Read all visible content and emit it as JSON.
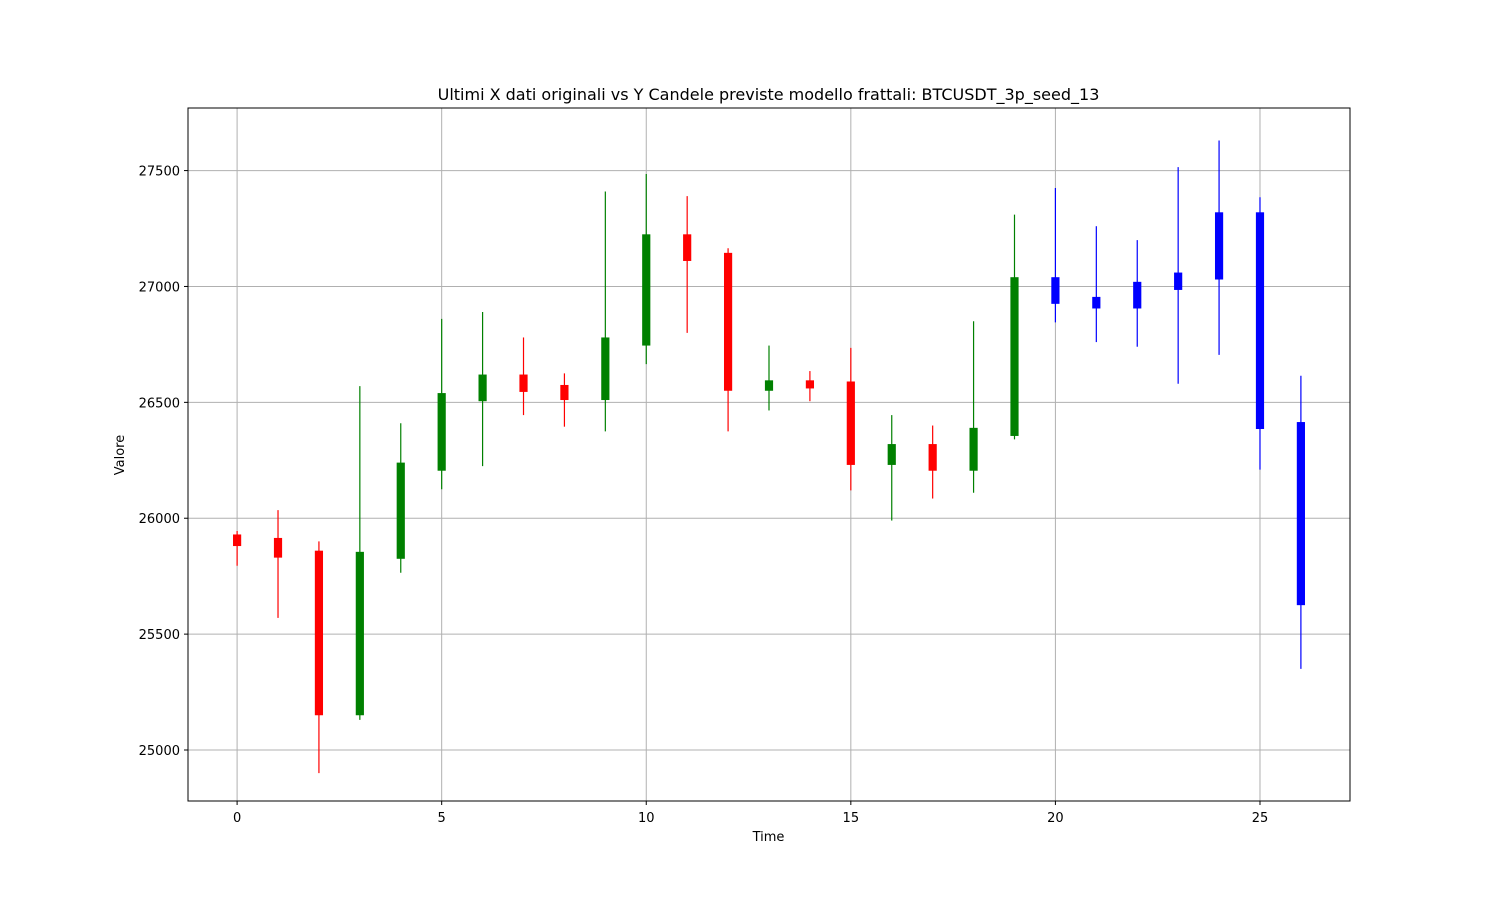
{
  "chart_data": {
    "type": "candlestick",
    "title": "Ultimi X dati originali vs Y Candele previste modello frattali: BTCUSDT_3p_seed_13",
    "xlabel": "Time",
    "ylabel": "Valore",
    "xlim": [
      -1.2,
      27.2
    ],
    "ylim": [
      24780,
      27770
    ],
    "xticks": [
      0,
      5,
      10,
      15,
      20,
      25
    ],
    "yticks": [
      25000,
      25500,
      26000,
      26500,
      27000,
      27500
    ],
    "grid": true,
    "colors": {
      "up": "#008000",
      "down": "#ff0000",
      "predicted": "#0000ff"
    },
    "candles": [
      {
        "x": 0,
        "open": 25930,
        "high": 25945,
        "low": 25795,
        "close": 25880,
        "kind": "down"
      },
      {
        "x": 1,
        "open": 25915,
        "high": 26035,
        "low": 25570,
        "close": 25830,
        "kind": "down"
      },
      {
        "x": 2,
        "open": 25860,
        "high": 25900,
        "low": 24900,
        "close": 25150,
        "kind": "down"
      },
      {
        "x": 3,
        "open": 25150,
        "high": 26570,
        "low": 25130,
        "close": 25855,
        "kind": "up"
      },
      {
        "x": 4,
        "open": 25825,
        "high": 26410,
        "low": 25765,
        "close": 26240,
        "kind": "up"
      },
      {
        "x": 5,
        "open": 26205,
        "high": 26860,
        "low": 26125,
        "close": 26540,
        "kind": "up"
      },
      {
        "x": 6,
        "open": 26505,
        "high": 26890,
        "low": 26225,
        "close": 26620,
        "kind": "up"
      },
      {
        "x": 7,
        "open": 26620,
        "high": 26780,
        "low": 26445,
        "close": 26545,
        "kind": "down"
      },
      {
        "x": 8,
        "open": 26575,
        "high": 26625,
        "low": 26395,
        "close": 26510,
        "kind": "down"
      },
      {
        "x": 9,
        "open": 26510,
        "high": 27410,
        "low": 26375,
        "close": 26780,
        "kind": "up"
      },
      {
        "x": 10,
        "open": 26745,
        "high": 27485,
        "low": 26665,
        "close": 27225,
        "kind": "up"
      },
      {
        "x": 11,
        "open": 27225,
        "high": 27390,
        "low": 26800,
        "close": 27110,
        "kind": "down"
      },
      {
        "x": 12,
        "open": 27145,
        "high": 27165,
        "low": 26375,
        "close": 26550,
        "kind": "down"
      },
      {
        "x": 13,
        "open": 26550,
        "high": 26745,
        "low": 26465,
        "close": 26595,
        "kind": "up"
      },
      {
        "x": 14,
        "open": 26595,
        "high": 26635,
        "low": 26505,
        "close": 26560,
        "kind": "down"
      },
      {
        "x": 15,
        "open": 26590,
        "high": 26735,
        "low": 26120,
        "close": 26230,
        "kind": "down"
      },
      {
        "x": 16,
        "open": 26230,
        "high": 26445,
        "low": 25990,
        "close": 26320,
        "kind": "up"
      },
      {
        "x": 17,
        "open": 26320,
        "high": 26400,
        "low": 26085,
        "close": 26205,
        "kind": "down"
      },
      {
        "x": 18,
        "open": 26205,
        "high": 26850,
        "low": 26110,
        "close": 26390,
        "kind": "up"
      },
      {
        "x": 19,
        "open": 26355,
        "high": 27310,
        "low": 26340,
        "close": 27040,
        "kind": "up"
      },
      {
        "x": 20,
        "open": 26925,
        "high": 27425,
        "low": 26845,
        "close": 27040,
        "kind": "predicted"
      },
      {
        "x": 21,
        "open": 26905,
        "high": 27260,
        "low": 26760,
        "close": 26955,
        "kind": "predicted"
      },
      {
        "x": 22,
        "open": 26905,
        "high": 27200,
        "low": 26740,
        "close": 27020,
        "kind": "predicted"
      },
      {
        "x": 23,
        "open": 26985,
        "high": 27515,
        "low": 26580,
        "close": 27060,
        "kind": "predicted"
      },
      {
        "x": 24,
        "open": 27030,
        "high": 27630,
        "low": 26705,
        "close": 27320,
        "kind": "predicted"
      },
      {
        "x": 25,
        "open": 26385,
        "high": 27385,
        "low": 26210,
        "close": 27320,
        "kind": "predicted"
      },
      {
        "x": 26,
        "open": 26415,
        "high": 26615,
        "low": 25350,
        "close": 25625,
        "kind": "predicted"
      }
    ]
  }
}
